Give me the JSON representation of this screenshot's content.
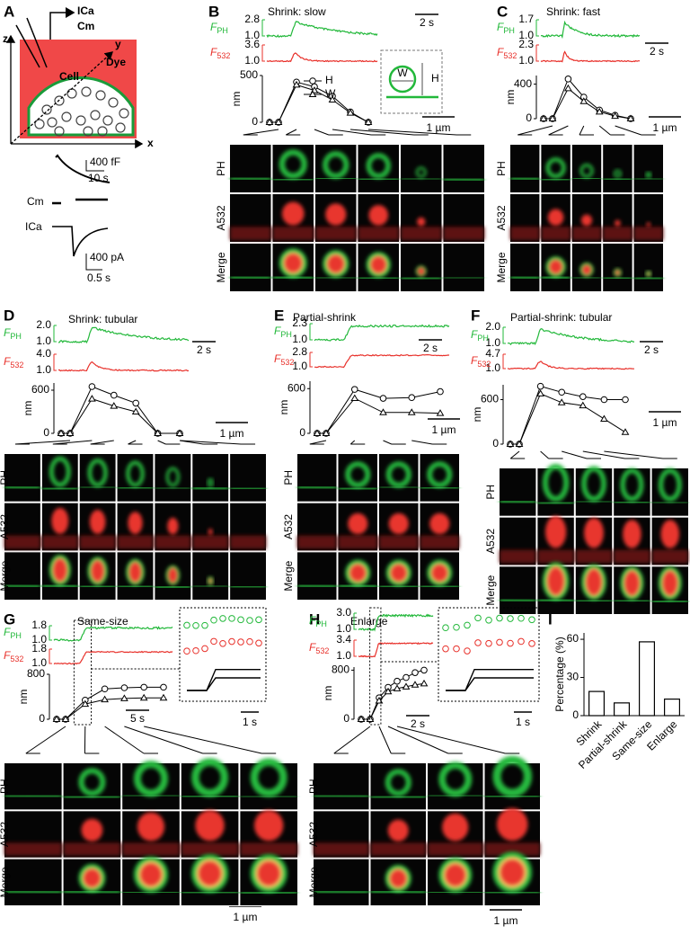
{
  "panel_a": {
    "letter": "A",
    "axes": [
      "z",
      "y",
      "x"
    ],
    "pipette": [
      "ICa",
      "Cm"
    ],
    "dye": "Dye",
    "cell": "Cell",
    "cm_scale": [
      "400 fF",
      "10 s"
    ],
    "traces": [
      "Cm",
      "ICa"
    ],
    "ica_scale": [
      "400 pA",
      "0.5 s"
    ]
  },
  "fph_label": {
    "symbol": "F",
    "sub": "PH"
  },
  "f532_label": {
    "symbol": "F",
    "sub": "532"
  },
  "row_labels": [
    "PH",
    "A532",
    "Merge"
  ],
  "panels": [
    {
      "letter": "B",
      "title": "Shrink: slow",
      "fph_ticks": [
        "2.8",
        "1.0"
      ],
      "f532_ticks": [
        "3.6",
        "1.0"
      ],
      "nm_ylabel": "nm",
      "nm_ticks": [
        0,
        500
      ],
      "nm_ylim": [
        0,
        500
      ],
      "H": [
        0,
        0,
        430,
        380,
        280,
        110,
        0
      ],
      "W": [
        0,
        0,
        400,
        340,
        240,
        100,
        0
      ],
      "time_bar": "2 s",
      "length_bar": "1 µm",
      "legend": [
        "H",
        "W"
      ],
      "inset_labels": [
        "W",
        "H"
      ]
    },
    {
      "letter": "C",
      "title": "Shrink: fast",
      "fph_ticks": [
        "1.7",
        "1.0"
      ],
      "f532_ticks": [
        "2.3",
        "1.0"
      ],
      "nm_ylabel": "nm",
      "nm_ticks": [
        0,
        400
      ],
      "nm_ylim": [
        0,
        500
      ],
      "H": [
        0,
        0,
        460,
        250,
        100,
        40,
        0
      ],
      "W": [
        0,
        0,
        350,
        200,
        80,
        30,
        0
      ],
      "time_bar": "2 s",
      "length_bar": "1 µm"
    },
    {
      "letter": "D",
      "title": "Shrink: tubular",
      "fph_ticks": [
        "2.0",
        "1.0"
      ],
      "f532_ticks": [
        "4.0",
        "1.0"
      ],
      "nm_ylabel": "nm",
      "nm_ticks": [
        0,
        600
      ],
      "nm_ylim": [
        0,
        700
      ],
      "H": [
        0,
        0,
        650,
        530,
        420,
        0,
        0
      ],
      "W": [
        0,
        0,
        480,
        380,
        300,
        0,
        0
      ],
      "time_bar": "2 s",
      "length_bar": "1 µm"
    },
    {
      "letter": "E",
      "title": "Partial-shrink",
      "fph_ticks": [
        "2.3",
        "1.0"
      ],
      "f532_ticks": [
        "2.8",
        "1.0"
      ],
      "nm_ylabel": "nm",
      "nm_ticks": [
        0,
        600
      ],
      "nm_ylim": [
        0,
        700
      ],
      "H": [
        0,
        0,
        590,
        470,
        480,
        560
      ],
      "W": [
        0,
        0,
        470,
        280,
        280,
        270
      ],
      "time_bar": "2 s",
      "length_bar": "1 µm"
    },
    {
      "letter": "F",
      "title": "Partial-shrink: tubular",
      "fph_ticks": [
        "2.0",
        "1.0"
      ],
      "f532_ticks": [
        "4.7",
        "1.0"
      ],
      "nm_ylabel": "nm",
      "nm_ticks": [
        0,
        600
      ],
      "nm_ylim": [
        0,
        800
      ],
      "H": [
        0,
        0,
        780,
        700,
        640,
        600,
        600
      ],
      "W": [
        0,
        0,
        680,
        560,
        520,
        340,
        160
      ],
      "time_bar": "2 s",
      "length_bar": "1 µm"
    },
    {
      "letter": "G",
      "title": "Same-size",
      "fph_ticks": [
        "1.8",
        "1.0"
      ],
      "f532_ticks": [
        "1.8",
        "1.0"
      ],
      "nm_ylabel": "nm",
      "nm_ticks": [
        0,
        800
      ],
      "nm_ylim": [
        0,
        800
      ],
      "H": [
        0,
        0,
        340,
        540,
        560,
        570,
        570
      ],
      "W": [
        0,
        0,
        270,
        350,
        370,
        380,
        380
      ],
      "time_bar": "5 s",
      "inset_time_bar": "1 s",
      "length_bar": "1 µm"
    },
    {
      "letter": "H",
      "title": "Enlarge",
      "fph_ticks": [
        "3.0",
        "1.0"
      ],
      "f532_ticks": [
        "3.4",
        "1.0"
      ],
      "nm_ylabel": "nm",
      "nm_ticks": [
        0,
        800
      ],
      "nm_ylim": [
        0,
        850
      ],
      "H": [
        0,
        0,
        350,
        520,
        620,
        680,
        760,
        800
      ],
      "W": [
        0,
        0,
        300,
        450,
        500,
        530,
        560,
        580
      ],
      "time_bar": "2 s",
      "inset_time_bar": "1 s",
      "length_bar": "1 µm"
    }
  ],
  "chart_data": {
    "type": "bar",
    "letter": "I",
    "ylabel": "Percentage (%)",
    "categories": [
      "Shrink",
      "Partial-shrink",
      "Same-size",
      "Enlarge"
    ],
    "values": [
      19,
      10,
      58,
      13
    ],
    "ylim": [
      0,
      65
    ],
    "yticks": [
      0,
      30,
      60
    ],
    "color": "#ffffff",
    "edge_color": "#000000"
  }
}
